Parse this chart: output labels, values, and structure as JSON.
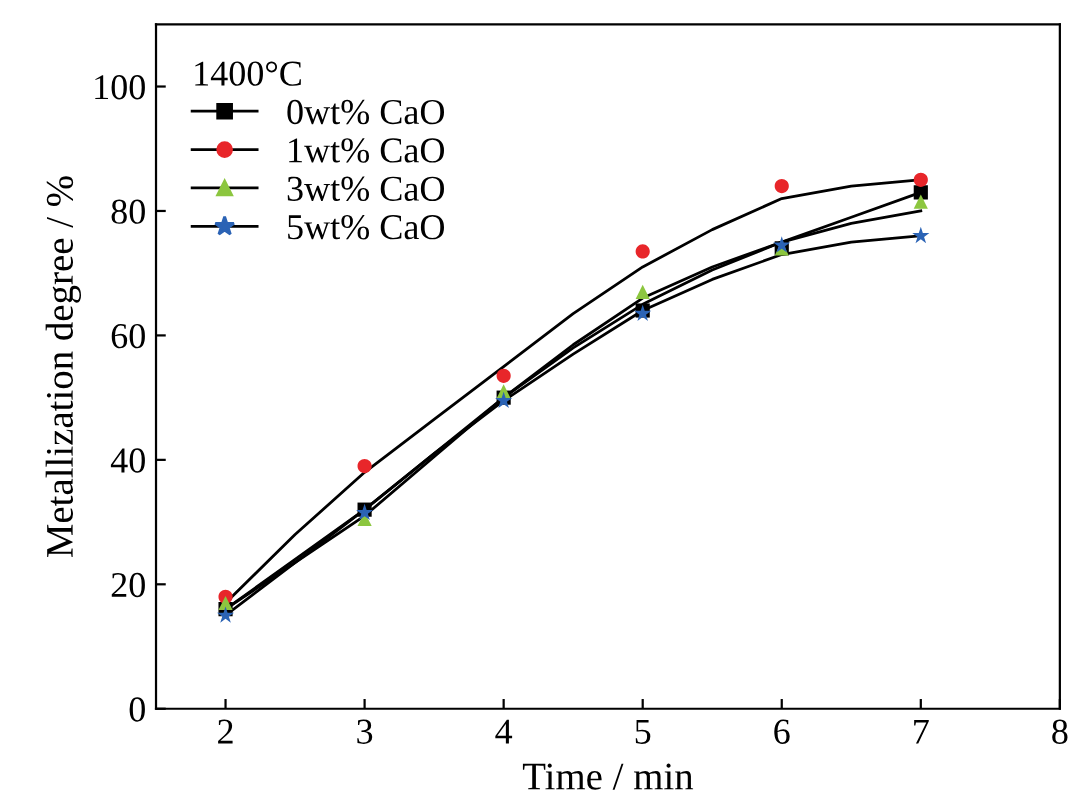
{
  "chart_data": {
    "type": "line",
    "xlabel": "Time / min",
    "ylabel": "Metallization degree / %",
    "legend_title": "1400°C",
    "legend": "top left",
    "grid": false,
    "x": [
      2,
      3,
      4,
      5,
      6,
      7
    ],
    "xlim": [
      1.5,
      8
    ],
    "xticks": [
      2,
      3,
      4,
      5,
      6,
      7,
      8
    ],
    "ylim": [
      0,
      110
    ],
    "yticks": [
      0,
      20,
      40,
      60,
      80,
      100
    ],
    "series": [
      {
        "name": "0wt% CaO",
        "type": "scatter",
        "marker": "square",
        "color": "#000000",
        "values": [
          16,
          32,
          50,
          64,
          74,
          83
        ]
      },
      {
        "name": "1wt% CaO",
        "type": "scatter",
        "marker": "circle",
        "color": "#e8262a",
        "values": [
          18,
          39,
          53.5,
          73.5,
          84,
          85
        ]
      },
      {
        "name": "3wt% CaO",
        "type": "scatter",
        "marker": "triangle",
        "color": "#8cc63f",
        "values": [
          17,
          30.5,
          51,
          67,
          74,
          81.5
        ]
      },
      {
        "name": "5wt% CaO",
        "type": "scatter",
        "marker": "star",
        "color": "#2b63b5",
        "values": [
          15,
          31.5,
          49.5,
          63.5,
          74.5,
          76
        ]
      },
      {
        "color": "#000000",
        "line_style": "solid",
        "x": [
          2,
          2.5,
          3,
          3.5,
          4,
          4.5,
          5,
          5.5,
          6,
          6.5,
          7
        ],
        "values": [
          16,
          24,
          32,
          41,
          50,
          58,
          65,
          70.5,
          75,
          79,
          83
        ]
      },
      {
        "color": "#000000",
        "line_style": "solid",
        "x": [
          2,
          2.5,
          3,
          3.5,
          4,
          4.5,
          5,
          5.5,
          6,
          6.5,
          7
        ],
        "values": [
          17,
          28,
          38,
          46.5,
          55,
          63.5,
          71,
          77,
          82,
          84,
          85
        ]
      },
      {
        "color": "#000000",
        "line_style": "solid",
        "x": [
          2,
          2.5,
          3,
          3.5,
          4,
          4.5,
          5,
          5.5,
          6,
          6.5,
          7
        ],
        "values": [
          16,
          23.5,
          31,
          40.5,
          50,
          58.5,
          66,
          71,
          75,
          78,
          80
        ]
      },
      {
        "color": "#000000",
        "line_style": "solid",
        "x": [
          2,
          2.5,
          3,
          3.5,
          4,
          4.5,
          5,
          5.5,
          6,
          6.5,
          7
        ],
        "values": [
          15,
          23.5,
          32,
          41,
          49.5,
          57,
          64,
          69,
          73,
          75,
          76
        ]
      }
    ]
  }
}
